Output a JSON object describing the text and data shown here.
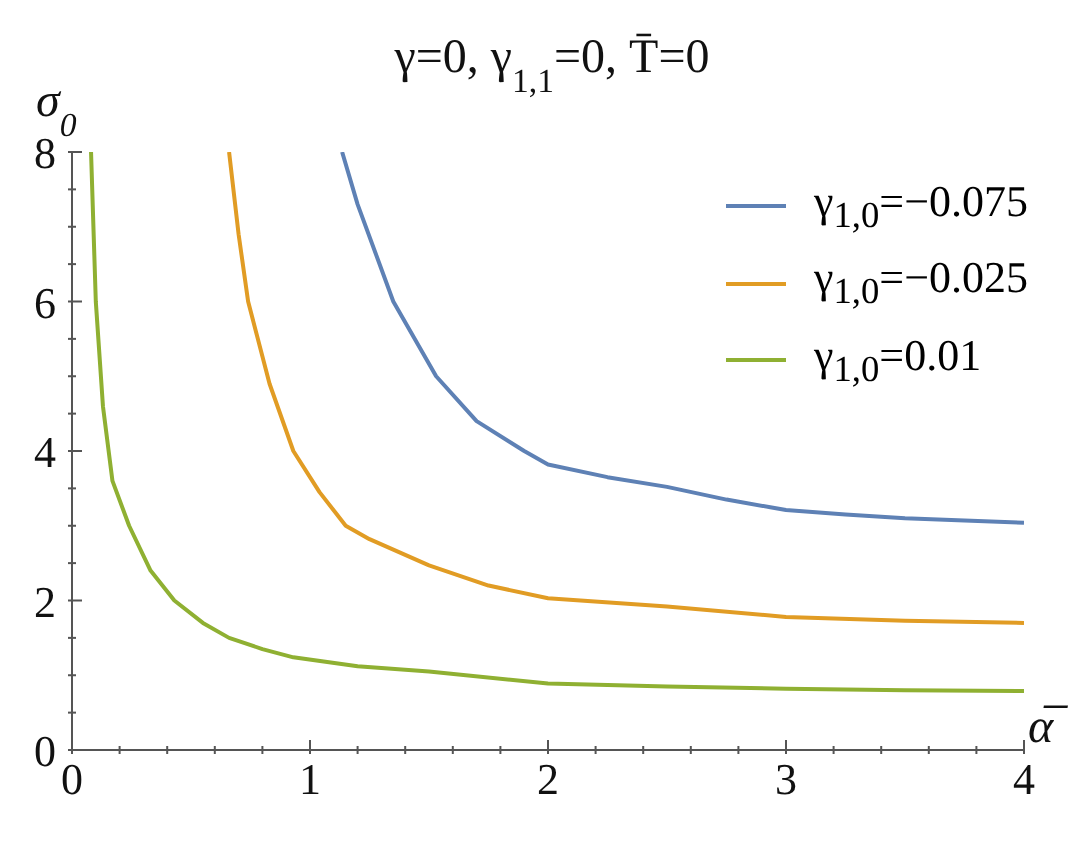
{
  "chart_data": {
    "type": "line",
    "title": "γ=0, γ$_{1,1}$=0, T̄=0",
    "xlabel": "α̅",
    "ylabel": "σ$_{0}$",
    "xlim": [
      0,
      4
    ],
    "ylim": [
      0,
      8
    ],
    "xticks": [
      0,
      {
        "value": 0.2,
        "label": null
      },
      {
        "value": 0.4,
        "label": null
      },
      {
        "value": 0.6,
        "label": null
      },
      {
        "value": 0.8,
        "label": null
      },
      1,
      {
        "value": 1.2,
        "label": null
      },
      {
        "value": 1.4,
        "label": null
      },
      {
        "value": 1.6,
        "label": null
      },
      {
        "value": 1.8,
        "label": null
      },
      2,
      {
        "value": 2.2,
        "label": null
      },
      {
        "value": 2.4,
        "label": null
      },
      {
        "value": 2.6,
        "label": null
      },
      {
        "value": 2.8,
        "label": null
      },
      3,
      {
        "value": 3.2,
        "label": null
      },
      {
        "value": 3.4,
        "label": null
      },
      {
        "value": 3.6,
        "label": null
      },
      {
        "value": 3.8,
        "label": null
      },
      4
    ],
    "yticks": [
      0,
      {
        "value": 0.5,
        "label": null
      },
      {
        "value": 1,
        "label": null
      },
      {
        "value": 1.5,
        "label": null
      },
      2,
      {
        "value": 2.5,
        "label": null
      },
      {
        "value": 3,
        "label": null
      },
      {
        "value": 3.5,
        "label": null
      },
      4,
      {
        "value": 4.5,
        "label": null
      },
      {
        "value": 5,
        "label": null
      },
      {
        "value": 5.5,
        "label": null
      },
      6,
      {
        "value": 6.5,
        "label": null
      },
      {
        "value": 7,
        "label": null
      },
      {
        "value": 7.5,
        "label": null
      },
      8
    ],
    "legend": "top right",
    "marker": "none",
    "line_style": "solid",
    "series": [
      {
        "name": "γ$_{1,0}$=−0.075",
        "color": "#5e81b5",
        "x": [
          1.135,
          1.2,
          1.35,
          1.53,
          1.7,
          1.9,
          2.0,
          2.25,
          2.5,
          2.75,
          3.0,
          3.25,
          3.5,
          3.75,
          4.0
        ],
        "values": [
          8,
          7.3,
          6,
          5,
          4.4,
          4,
          3.82,
          3.65,
          3.52,
          3.35,
          3.21,
          3.15,
          3.1,
          3.07,
          3.04
        ]
      },
      {
        "name": "γ$_{1,0}$=−0.025",
        "color": "#e19c24",
        "x": [
          0.66,
          0.7,
          0.74,
          0.83,
          0.93,
          1.04,
          1.15,
          1.25,
          1.5,
          1.75,
          2.0,
          2.5,
          3.0,
          3.5,
          4.0
        ],
        "values": [
          8,
          6.9,
          6,
          4.9,
          4,
          3.45,
          3,
          2.82,
          2.47,
          2.2,
          2.03,
          1.92,
          1.78,
          1.73,
          1.7
        ]
      },
      {
        "name": "γ$_{1,0}$=0.01",
        "color": "#8fb032",
        "x": [
          0.08,
          0.1,
          0.13,
          0.17,
          0.24,
          0.33,
          0.43,
          0.55,
          0.66,
          0.8,
          0.93,
          1.2,
          1.5,
          2.0,
          2.5,
          3.0,
          3.5,
          4.0
        ],
        "values": [
          8,
          6,
          4.6,
          3.6,
          3,
          2.4,
          2,
          1.7,
          1.5,
          1.35,
          1.24,
          1.12,
          1.05,
          0.89,
          0.85,
          0.82,
          0.8,
          0.79
        ]
      }
    ]
  }
}
